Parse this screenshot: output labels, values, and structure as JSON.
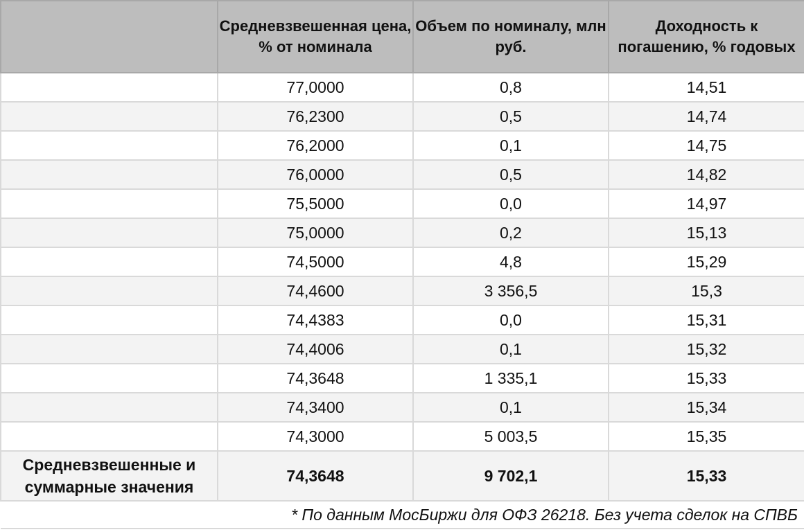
{
  "table": {
    "headers": [
      "",
      "Средневзвешенная цена, % от номинала",
      "Объем по номиналу, млн руб.",
      "Доходность к погашению, % годовых"
    ],
    "rows": [
      {
        "label": "",
        "price": "77,0000",
        "volume": "0,8",
        "yield": "14,51"
      },
      {
        "label": "",
        "price": "76,2300",
        "volume": "0,5",
        "yield": "14,74"
      },
      {
        "label": "",
        "price": "76,2000",
        "volume": "0,1",
        "yield": "14,75"
      },
      {
        "label": "",
        "price": "76,0000",
        "volume": "0,5",
        "yield": "14,82"
      },
      {
        "label": "",
        "price": "75,5000",
        "volume": "0,0",
        "yield": "14,97"
      },
      {
        "label": "",
        "price": "75,0000",
        "volume": "0,2",
        "yield": "15,13"
      },
      {
        "label": "",
        "price": "74,5000",
        "volume": "4,8",
        "yield": "15,29"
      },
      {
        "label": "",
        "price": "74,4600",
        "volume": "3 356,5",
        "yield": "15,3"
      },
      {
        "label": "",
        "price": "74,4383",
        "volume": "0,0",
        "yield": "15,31"
      },
      {
        "label": "",
        "price": "74,4006",
        "volume": "0,1",
        "yield": "15,32"
      },
      {
        "label": "",
        "price": "74,3648",
        "volume": "1 335,1",
        "yield": "15,33"
      },
      {
        "label": "",
        "price": "74,3400",
        "volume": "0,1",
        "yield": "15,34"
      },
      {
        "label": "",
        "price": "74,3000",
        "volume": "5 003,5",
        "yield": "15,35"
      }
    ],
    "summary": {
      "label": "Средневзвешенные и суммарные значения",
      "price": "74,3648",
      "volume": "9 702,1",
      "yield": "15,33"
    },
    "footnote": "* По данным МосБиржи для ОФЗ 26218. Без учета сделок на СПВБ"
  }
}
